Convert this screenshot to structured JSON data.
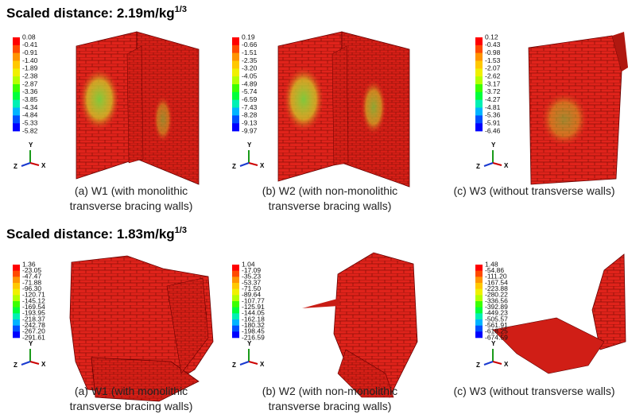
{
  "rows": [
    {
      "heading": {
        "text": "Scaled distance: 2.19m/kg",
        "sup": "1/3"
      },
      "panels": [
        {
          "legend": [
            "0.08",
            "-0.41",
            "-0.91",
            "-1.40",
            "-1.89",
            "-2.38",
            "-2.87",
            "-3.36",
            "-3.85",
            "-4.34",
            "-4.84",
            "-5.33",
            "-5.82"
          ],
          "caption": [
            "(a) W1 (with monolithic",
            "transverse bracing walls)"
          ]
        },
        {
          "legend": [
            "0.19",
            "-0.66",
            "-1.51",
            "-2.35",
            "-3.20",
            "-4.05",
            "-4.89",
            "-5.74",
            "-6.59",
            "-7.43",
            "-8.28",
            "-9.13",
            "-9.97"
          ],
          "caption": [
            "(b) W2 (with non-monolithic",
            "transverse bracing walls)"
          ]
        },
        {
          "legend": [
            "0.12",
            "-0.43",
            "-0.98",
            "-1.53",
            "-2.07",
            "-2.62",
            "-3.17",
            "-3.72",
            "-4.27",
            "-4.81",
            "-5.36",
            "-5.91",
            "-6.46"
          ],
          "caption": [
            "(c) W3 (without transverse walls)"
          ]
        }
      ]
    },
    {
      "heading": {
        "text": "Scaled distance: 1.83m/kg",
        "sup": "1/3"
      },
      "panels": [
        {
          "legend": [
            "1.36",
            "-23.05",
            "-47.47",
            "-71.88",
            "-96.30",
            "-120.71",
            "-145.12",
            "-169.54",
            "-193.95",
            "-218.37",
            "-242.78",
            "-267.20",
            "-291.61"
          ],
          "caption": [
            "(a) W1 (with monolithic",
            "transverse bracing walls)"
          ]
        },
        {
          "legend": [
            "1.04",
            "-17.09",
            "-35.23",
            "-53.37",
            "-71.50",
            "-89.64",
            "-107.77",
            "-125.91",
            "-144.05",
            "-162.18",
            "-180.32",
            "-198.45",
            "-216.59"
          ],
          "caption": [
            "(b) W2 (with non-monolithic",
            "transverse bracing walls)"
          ]
        },
        {
          "legend": [
            "1.48",
            "-54.86",
            "-111.20",
            "-167.54",
            "-223.88",
            "-280.22",
            "-336.56",
            "-392.89",
            "-449.23",
            "-505.57",
            "-561.91",
            "-618.25",
            "-674.59"
          ],
          "caption": [
            "(c) W3 (without transverse walls)"
          ]
        }
      ]
    }
  ],
  "triad": {
    "y": "Y",
    "z": "Z",
    "x": "X"
  }
}
